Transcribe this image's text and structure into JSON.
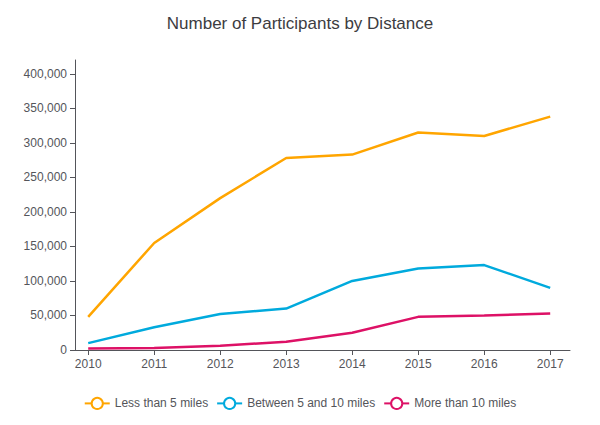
{
  "chart_data": {
    "type": "line",
    "title": "Number of Participants by Distance",
    "x": [
      2010,
      2011,
      2012,
      2013,
      2014,
      2015,
      2016,
      2017
    ],
    "series": [
      {
        "name": "Less than 5 miles",
        "color": "#FFA500",
        "values": [
          48000,
          155000,
          220000,
          278000,
          283000,
          315000,
          310000,
          338000
        ]
      },
      {
        "name": "Between 5 and 10 miles",
        "color": "#00AADD",
        "values": [
          10000,
          33000,
          52000,
          60000,
          100000,
          118000,
          123000,
          90000
        ]
      },
      {
        "name": "More than 10 miles",
        "color": "#DD1166",
        "values": [
          2000,
          3000,
          6000,
          12000,
          25000,
          48000,
          50000,
          53000
        ]
      }
    ],
    "xlim": [
      2009.8,
      2017.3
    ],
    "xticks": [
      2010,
      2011,
      2012,
      2013,
      2014,
      2015,
      2016,
      2017
    ],
    "ylim": [
      0,
      420000
    ],
    "yticks": [
      0,
      {
        "value": 50000,
        "label": "50,000"
      },
      {
        "value": 100000,
        "label": "100,000"
      },
      {
        "value": 150000,
        "label": "150,000"
      },
      {
        "value": 200000,
        "label": "200,000"
      },
      {
        "value": 250000,
        "label": "250,000"
      },
      {
        "value": 300000,
        "label": "300,000"
      },
      {
        "value": 350000,
        "label": "350,000"
      },
      {
        "value": 400000,
        "label": "400,000"
      }
    ],
    "grid": false,
    "legend": "bottom"
  }
}
